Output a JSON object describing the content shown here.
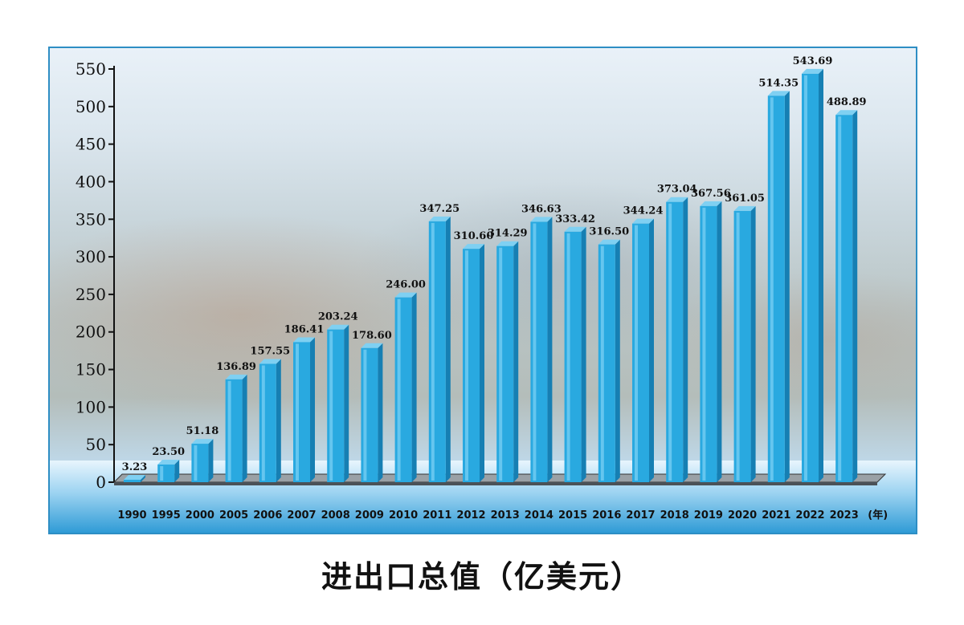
{
  "chart_data": {
    "type": "bar",
    "title": "进出口总值（亿美元）",
    "x_unit": "(年)",
    "categories": [
      "1990",
      "1995",
      "2000",
      "2005",
      "2006",
      "2007",
      "2008",
      "2009",
      "2010",
      "2011",
      "2012",
      "2013",
      "2014",
      "2015",
      "2016",
      "2017",
      "2018",
      "2019",
      "2020",
      "2021",
      "2022",
      "2023"
    ],
    "values": [
      3.23,
      23.5,
      51.18,
      136.89,
      157.55,
      186.41,
      203.24,
      178.6,
      246.0,
      347.25,
      310.6,
      314.29,
      346.63,
      333.42,
      316.5,
      344.24,
      373.04,
      367.56,
      361.05,
      514.35,
      543.69,
      488.89
    ],
    "value_labels": [
      "3.23",
      "23.50",
      "51.18",
      "136.89",
      "157.55",
      "186.41",
      "203.24",
      "178.60",
      "246.00",
      "347.25",
      "310.60",
      "314.29",
      "346.63",
      "333.42",
      "316.50",
      "344.24",
      "373.04",
      "367.56",
      "361.05",
      "514.35",
      "543.69",
      "488.89"
    ],
    "y_ticks": [
      "0",
      "50",
      "100",
      "150",
      "200",
      "250",
      "300",
      "350",
      "400",
      "450",
      "500",
      "550"
    ],
    "ylim": [
      0,
      550
    ],
    "bar_color": "#29a9e0",
    "grid": false,
    "legend": "none"
  }
}
